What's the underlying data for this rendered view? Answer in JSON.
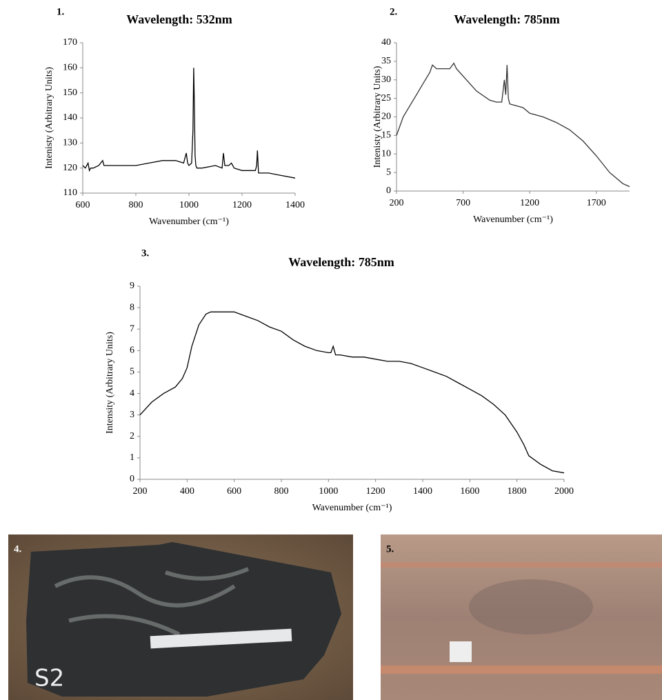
{
  "chart_data": [
    {
      "type": "line",
      "panel_label": "1.",
      "title": "Wavelength: 532nm",
      "x_label": "Wavenumber (cm⁻¹)",
      "y_label": "Intenisty (Arbitrary Units)",
      "color": "#000000",
      "x": [
        600,
        610,
        620,
        625,
        630,
        640,
        660,
        675,
        680,
        700,
        750,
        800,
        850,
        900,
        950,
        980,
        990,
        995,
        1000,
        1010,
        1015,
        1018,
        1020,
        1023,
        1026,
        1030,
        1050,
        1100,
        1125,
        1130,
        1135,
        1150,
        1160,
        1170,
        1200,
        1250,
        1255,
        1258,
        1262,
        1270,
        1300,
        1350,
        1400
      ],
      "values": [
        121,
        120,
        122,
        119,
        120,
        120,
        121,
        123,
        121,
        121,
        121,
        121,
        122,
        123,
        123,
        122,
        126,
        122,
        121,
        122,
        135,
        160,
        148,
        125,
        121,
        120,
        120,
        121,
        120,
        126,
        121,
        121,
        122,
        120,
        119,
        119,
        121,
        127,
        118,
        118,
        118,
        117,
        116
      ],
      "xlim": [
        600,
        1400
      ],
      "xticks": [
        600,
        800,
        1000,
        1200,
        1400
      ],
      "ylim": [
        110,
        170
      ],
      "yticks": [
        110,
        120,
        130,
        140,
        150,
        160,
        170
      ]
    },
    {
      "type": "line",
      "panel_label": "2.",
      "title": "Wavelength: 785nm",
      "x_label": "Wavenumber (cm⁻¹)",
      "y_label": "Intenisty (Arbitrary Units)",
      "color": "#333333",
      "x": [
        200,
        250,
        300,
        350,
        400,
        450,
        470,
        500,
        550,
        600,
        630,
        650,
        700,
        800,
        900,
        950,
        990,
        1000,
        1010,
        1020,
        1030,
        1040,
        1050,
        1100,
        1150,
        1200,
        1300,
        1400,
        1500,
        1600,
        1700,
        1800,
        1900,
        1950
      ],
      "values": [
        15,
        20,
        23,
        26,
        29,
        32,
        34,
        33,
        33,
        33,
        34.5,
        33,
        31,
        27,
        24.5,
        24,
        24,
        27,
        30,
        26,
        34,
        25,
        23.5,
        23,
        22.5,
        21,
        20,
        18.5,
        16.5,
        13.5,
        9.5,
        5,
        2,
        1.2
      ],
      "xlim": [
        200,
        1950
      ],
      "xticks": [
        200,
        700,
        1200,
        1700
      ],
      "ylim": [
        0,
        40
      ],
      "yticks": [
        0,
        5,
        10,
        15,
        20,
        25,
        30,
        35,
        40
      ]
    },
    {
      "type": "line",
      "panel_label": "3.",
      "title": "Wavelength: 785nm",
      "x_label": "Wavenumber (cm⁻¹)",
      "y_label": "Intensity (Arbitrary Units)",
      "color": "#000000",
      "x": [
        200,
        250,
        300,
        350,
        380,
        400,
        420,
        450,
        480,
        500,
        550,
        600,
        650,
        700,
        750,
        800,
        850,
        900,
        950,
        1000,
        1010,
        1020,
        1030,
        1050,
        1100,
        1150,
        1200,
        1250,
        1300,
        1350,
        1400,
        1450,
        1500,
        1550,
        1600,
        1650,
        1700,
        1750,
        1800,
        1830,
        1850,
        1900,
        1950,
        2000
      ],
      "values": [
        3,
        3.6,
        4,
        4.3,
        4.7,
        5.2,
        6.2,
        7.2,
        7.7,
        7.8,
        7.8,
        7.8,
        7.6,
        7.4,
        7.1,
        6.9,
        6.5,
        6.2,
        6.0,
        5.9,
        5.9,
        6.2,
        5.8,
        5.8,
        5.7,
        5.7,
        5.6,
        5.5,
        5.5,
        5.4,
        5.2,
        5.0,
        4.8,
        4.5,
        4.2,
        3.9,
        3.5,
        3.0,
        2.2,
        1.6,
        1.1,
        0.7,
        0.4,
        0.3
      ],
      "xlim": [
        200,
        2000
      ],
      "xticks": [
        200,
        400,
        600,
        800,
        1000,
        1200,
        1400,
        1600,
        1800,
        2000
      ],
      "ylim": [
        0,
        9
      ],
      "yticks": [
        0,
        1,
        2,
        3,
        4,
        5,
        6,
        7,
        8,
        9
      ]
    }
  ],
  "photos": [
    {
      "label": "4."
    },
    {
      "label": "5."
    }
  ]
}
